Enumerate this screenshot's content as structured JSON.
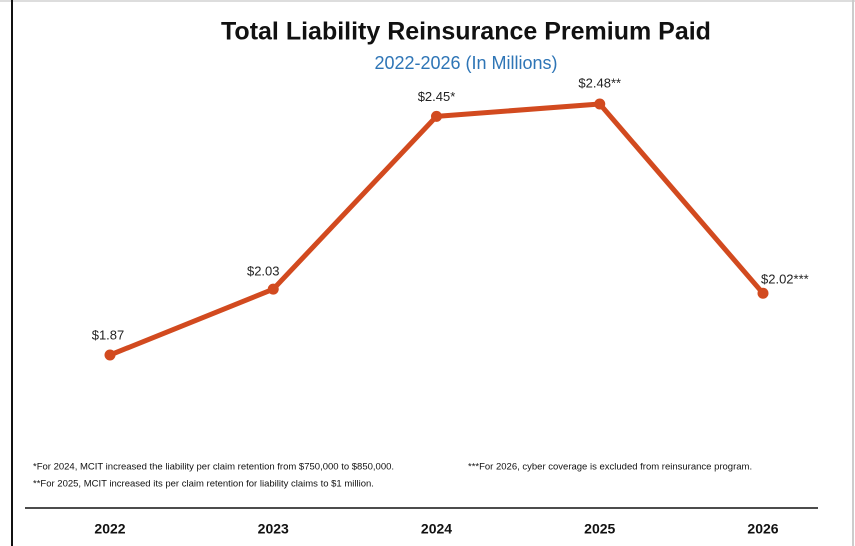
{
  "chart_data": {
    "type": "line",
    "title": "Total Liability Reinsurance Premium Paid",
    "subtitle": "2022-2026 (In Millions)",
    "categories": [
      "2022",
      "2023",
      "2024",
      "2025",
      "2026"
    ],
    "values": [
      1.87,
      2.03,
      2.45,
      2.48,
      2.02
    ],
    "value_labels": [
      "$1.87",
      "$2.03",
      "$2.45*",
      "$2.48**",
      "$2.02***"
    ],
    "color": "#d24a1f",
    "annotations": [
      "*For 2024, MCIT increased the liability per claim retention from $750,000 to $850,000.",
      "**For 2025, MCIT increased its per claim retention for liability claims to $1 million.",
      "***For 2026, cyber coverage is excluded from reinsurance program."
    ]
  }
}
